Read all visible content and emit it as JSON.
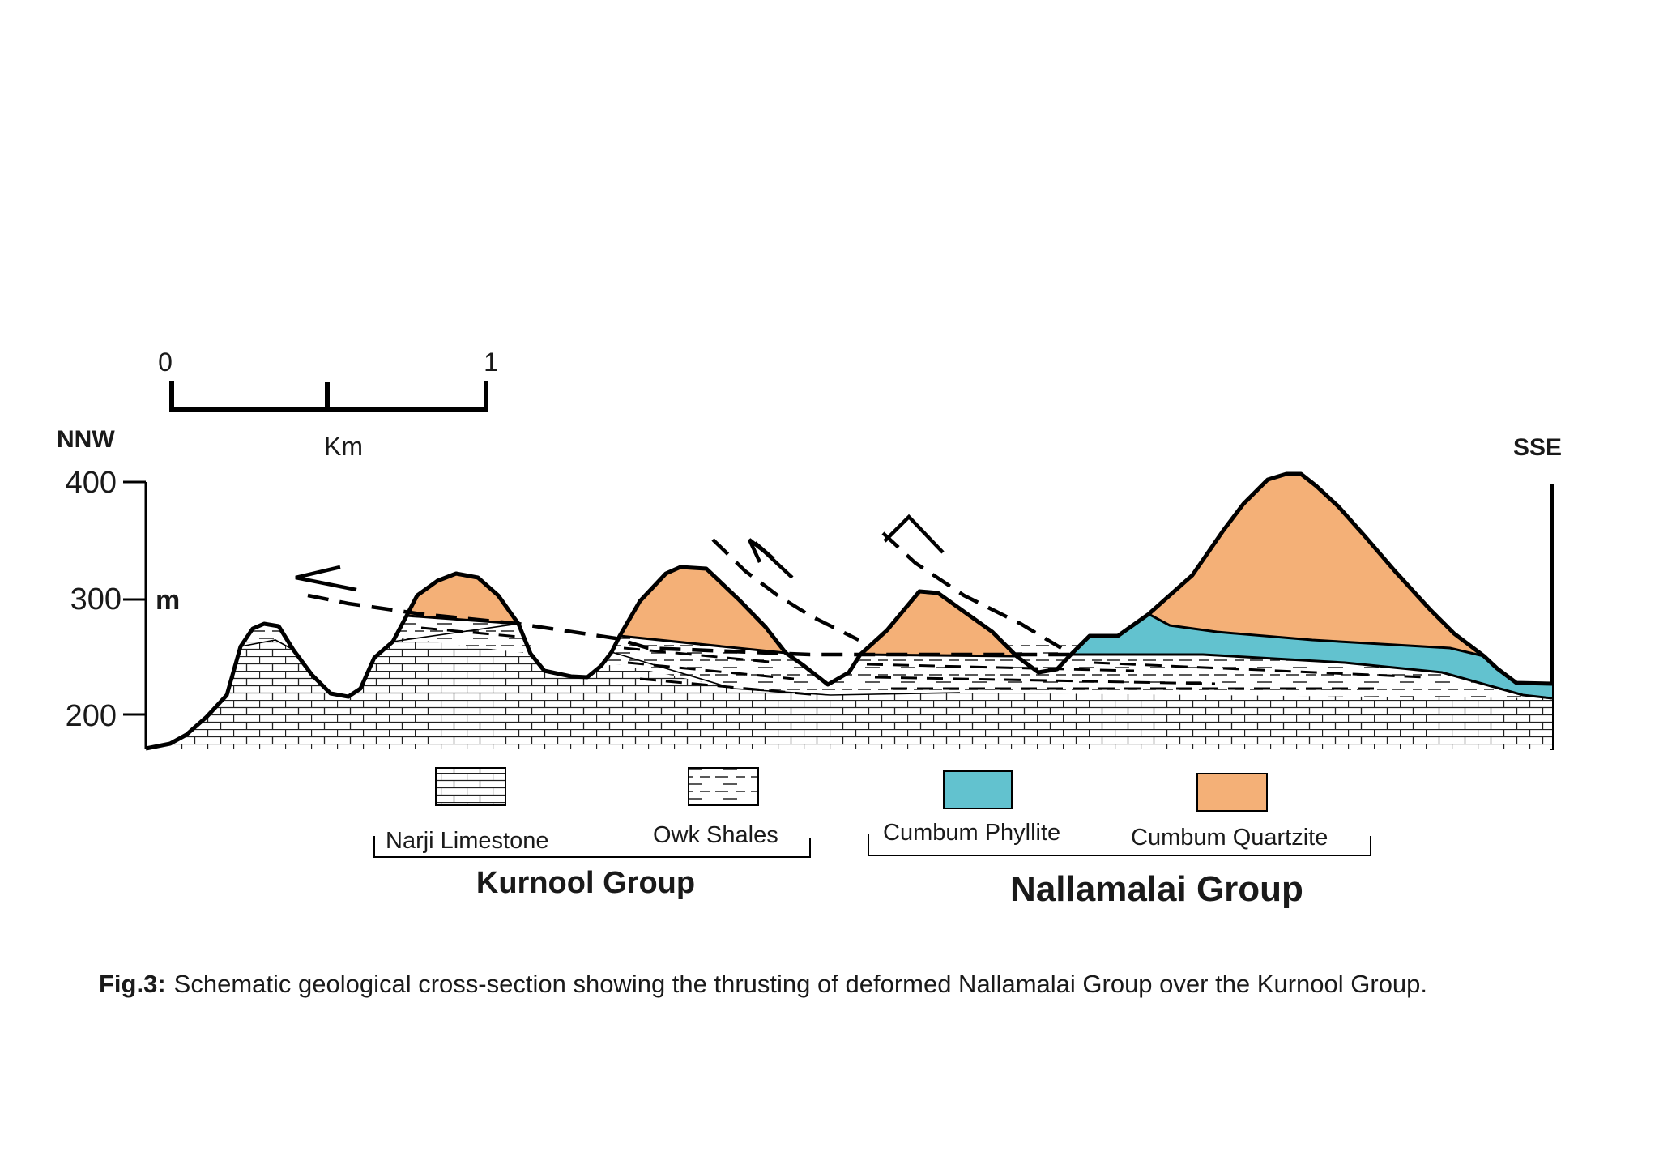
{
  "scale_bar": {
    "start": "0",
    "end": "1",
    "unit": "Km"
  },
  "directions": {
    "left": "NNW",
    "right": "SSE"
  },
  "axis": {
    "ticks": [
      "400",
      "300",
      "200"
    ],
    "unit": "m"
  },
  "legend": [
    {
      "label": "Narji Limestone",
      "pattern": "brick"
    },
    {
      "label": "Owk Shales",
      "pattern": "dash"
    },
    {
      "label": "Cumbum Phyllite",
      "color": "#62c2cf"
    },
    {
      "label": "Cumbum Quartzite",
      "color": "#f4b077"
    }
  ],
  "groups": [
    {
      "label": "Kurnool Group"
    },
    {
      "label": "Nallamalai Group"
    }
  ],
  "caption": {
    "prefix": "Fig.3:",
    "text": "Schematic geological cross-section showing the thrusting of deformed Nallamalai Group over the Kurnool Group."
  },
  "colors": {
    "quartzite": "#f4b077",
    "phyllite": "#62c2cf",
    "line": "#000000"
  }
}
